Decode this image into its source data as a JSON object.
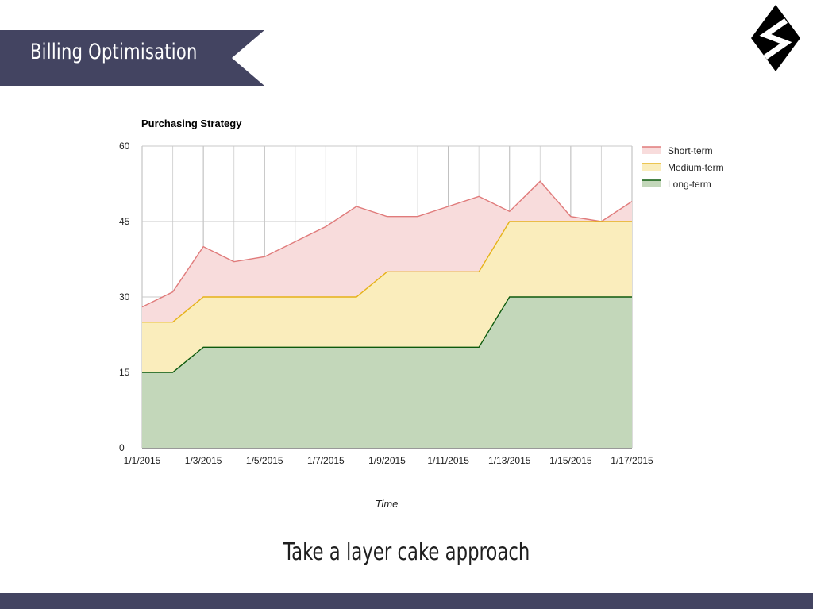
{
  "header": {
    "title": "Billing Optimisation",
    "banner_color": "#434461"
  },
  "logo": {
    "icon": "s-diamond-logo-icon",
    "color": "#000000"
  },
  "caption": "Take a layer cake approach",
  "chart_data": {
    "type": "area",
    "stacked": false,
    "title": "Purchasing Strategy",
    "xlabel": "Time",
    "ylabel": "",
    "ylim": [
      0,
      60
    ],
    "yticks": [
      0,
      15,
      30,
      45,
      60
    ],
    "x": [
      "1/1/2015",
      "1/2/2015",
      "1/3/2015",
      "1/4/2015",
      "1/5/2015",
      "1/6/2015",
      "1/7/2015",
      "1/8/2015",
      "1/9/2015",
      "1/10/2015",
      "1/11/2015",
      "1/12/2015",
      "1/13/2015",
      "1/14/2015",
      "1/15/2015",
      "1/16/2015",
      "1/17/2015"
    ],
    "xtick_labels": [
      "1/1/2015",
      "1/3/2015",
      "1/5/2015",
      "1/7/2015",
      "1/9/2015",
      "1/11/2015",
      "1/13/2015",
      "1/15/2015",
      "1/17/2015"
    ],
    "legend_position": "right",
    "series": [
      {
        "name": "Short-term",
        "line_color": "#e07b7b",
        "fill_color": "#f8dcdc",
        "values": [
          28,
          31,
          40,
          37,
          38,
          41,
          44,
          48,
          46,
          46,
          48,
          50,
          47,
          53,
          46,
          45,
          49
        ]
      },
      {
        "name": "Medium-term",
        "line_color": "#e6b218",
        "fill_color": "#faedbc",
        "values": [
          25,
          25,
          30,
          30,
          30,
          30,
          30,
          30,
          35,
          35,
          35,
          35,
          45,
          45,
          45,
          45,
          45
        ]
      },
      {
        "name": "Long-term",
        "line_color": "#0c5a0c",
        "fill_color": "#c3d7ba",
        "values": [
          15,
          15,
          20,
          20,
          20,
          20,
          20,
          20,
          20,
          20,
          20,
          20,
          30,
          30,
          30,
          30,
          30
        ]
      }
    ]
  }
}
